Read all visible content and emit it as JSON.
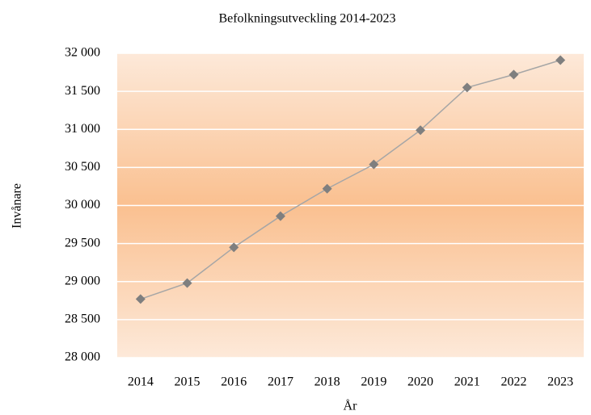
{
  "chart_data": {
    "type": "line",
    "title": "Befolkningsutveckling  2014-2023",
    "x_label": "År",
    "y_label": "Invånare",
    "categories": [
      "2014",
      "2015",
      "2016",
      "2017",
      "2018",
      "2019",
      "2020",
      "2021",
      "2022",
      "2023"
    ],
    "series": [
      {
        "name": "Invånare",
        "color": "#7f7f7f",
        "values": [
          28770,
          28980,
          29450,
          29860,
          30220,
          30540,
          30990,
          31550,
          31720,
          31910
        ]
      }
    ],
    "ylim": [
      28000,
      32000
    ],
    "yticks": [
      {
        "value": 28000,
        "label": "28 000"
      },
      {
        "value": 28500,
        "label": "28 500"
      },
      {
        "value": 29000,
        "label": "29 000"
      },
      {
        "value": 29500,
        "label": "29 500"
      },
      {
        "value": 30000,
        "label": "30 000"
      },
      {
        "value": 30500,
        "label": "30 500"
      },
      {
        "value": 31000,
        "label": "31 000"
      },
      {
        "value": 31500,
        "label": "31 500"
      },
      {
        "value": 32000,
        "label": "32 000"
      }
    ],
    "grid": true
  }
}
